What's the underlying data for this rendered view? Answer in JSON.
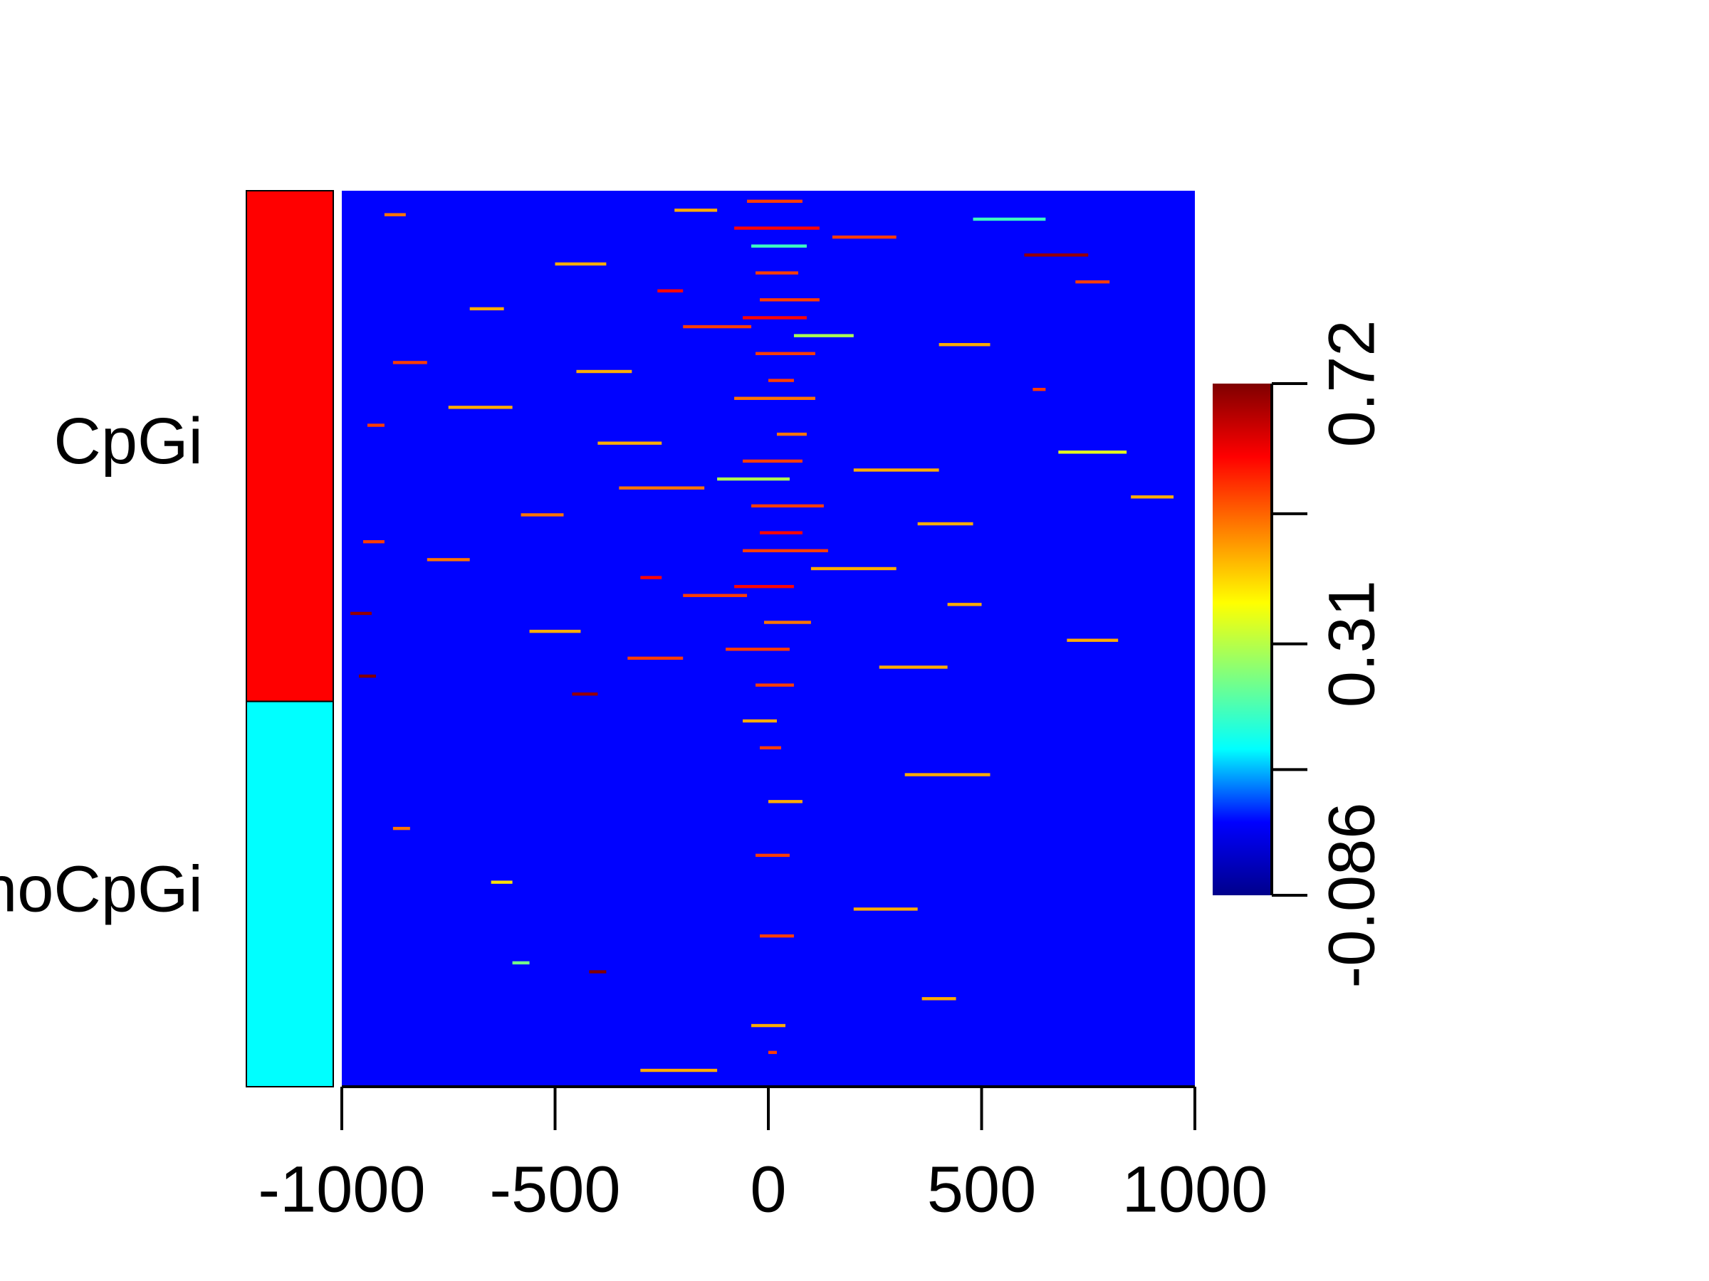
{
  "chart_data": {
    "type": "heatmap",
    "xlim": [
      -1000,
      1000
    ],
    "xticks": [
      -1000,
      -500,
      0,
      500,
      1000
    ],
    "rows": 200,
    "background_value": 0.03,
    "groups": [
      {
        "name": "CpGi",
        "color": "#ff0000",
        "rows": 114
      },
      {
        "name": "noCpGi",
        "color": "#00ffff",
        "rows": 86
      }
    ],
    "colormap": [
      "#00008b",
      "#0000ff",
      "#00ffff",
      "#7fff7f",
      "#ffff00",
      "#ff8000",
      "#ff0000",
      "#7f0000"
    ],
    "clim": [
      -0.086,
      0.72
    ],
    "colorbar_ticks": [
      {
        "value": -0.086,
        "label": "-0.086"
      },
      0.31,
      0.72
    ],
    "colorbar_minor_ticks": [
      0.112,
      0.515
    ],
    "segments": [
      [
        2,
        -50,
        80,
        0.55
      ],
      [
        4,
        -220,
        -120,
        0.45
      ],
      [
        5,
        -900,
        -850,
        0.5
      ],
      [
        6,
        480,
        650,
        0.2
      ],
      [
        8,
        -80,
        120,
        0.6
      ],
      [
        10,
        150,
        300,
        0.55
      ],
      [
        12,
        -40,
        90,
        0.2
      ],
      [
        14,
        600,
        750,
        0.7
      ],
      [
        16,
        -500,
        -380,
        0.45
      ],
      [
        18,
        -30,
        70,
        0.55
      ],
      [
        20,
        720,
        800,
        0.55
      ],
      [
        22,
        -260,
        -200,
        0.6
      ],
      [
        24,
        -20,
        120,
        0.55
      ],
      [
        26,
        -700,
        -620,
        0.45
      ],
      [
        28,
        -60,
        90,
        0.6
      ],
      [
        30,
        -200,
        -40,
        0.55
      ],
      [
        32,
        60,
        200,
        0.3
      ],
      [
        34,
        400,
        520,
        0.45
      ],
      [
        36,
        -30,
        110,
        0.55
      ],
      [
        38,
        -880,
        -800,
        0.55
      ],
      [
        40,
        -450,
        -320,
        0.45
      ],
      [
        42,
        0,
        60,
        0.55
      ],
      [
        44,
        620,
        650,
        0.55
      ],
      [
        46,
        -80,
        110,
        0.5
      ],
      [
        48,
        -750,
        -600,
        0.45
      ],
      [
        52,
        -940,
        -900,
        0.55
      ],
      [
        54,
        20,
        90,
        0.5
      ],
      [
        56,
        -400,
        -250,
        0.45
      ],
      [
        58,
        680,
        840,
        0.35
      ],
      [
        60,
        -60,
        80,
        0.55
      ],
      [
        62,
        200,
        400,
        0.45
      ],
      [
        64,
        -120,
        50,
        0.3
      ],
      [
        66,
        -350,
        -150,
        0.5
      ],
      [
        68,
        850,
        950,
        0.45
      ],
      [
        70,
        -40,
        130,
        0.55
      ],
      [
        72,
        -580,
        -480,
        0.5
      ],
      [
        74,
        350,
        480,
        0.45
      ],
      [
        76,
        -20,
        80,
        0.6
      ],
      [
        78,
        -950,
        -900,
        0.55
      ],
      [
        80,
        -60,
        140,
        0.55
      ],
      [
        82,
        -800,
        -700,
        0.5
      ],
      [
        84,
        100,
        300,
        0.45
      ],
      [
        86,
        -300,
        -250,
        0.6
      ],
      [
        88,
        -80,
        60,
        0.6
      ],
      [
        90,
        -200,
        -50,
        0.55
      ],
      [
        92,
        420,
        500,
        0.45
      ],
      [
        94,
        -980,
        -930,
        0.7
      ],
      [
        96,
        -10,
        100,
        0.5
      ],
      [
        98,
        -560,
        -440,
        0.45
      ],
      [
        100,
        700,
        820,
        0.45
      ],
      [
        102,
        -100,
        50,
        0.55
      ],
      [
        104,
        -330,
        -200,
        0.55
      ],
      [
        106,
        260,
        420,
        0.45
      ],
      [
        108,
        -960,
        -920,
        0.75
      ],
      [
        110,
        -30,
        60,
        0.55
      ],
      [
        112,
        -460,
        -400,
        0.7
      ],
      [
        118,
        -60,
        20,
        0.45
      ],
      [
        124,
        -20,
        30,
        0.55
      ],
      [
        130,
        320,
        520,
        0.45
      ],
      [
        136,
        0,
        80,
        0.45
      ],
      [
        142,
        -880,
        -840,
        0.5
      ],
      [
        148,
        -30,
        50,
        0.55
      ],
      [
        154,
        -650,
        -600,
        0.4
      ],
      [
        160,
        200,
        350,
        0.45
      ],
      [
        166,
        -20,
        60,
        0.55
      ],
      [
        172,
        -600,
        -560,
        0.25
      ],
      [
        174,
        -420,
        -380,
        0.75
      ],
      [
        180,
        360,
        440,
        0.45
      ],
      [
        186,
        -40,
        40,
        0.45
      ],
      [
        192,
        0,
        20,
        0.55
      ],
      [
        196,
        -300,
        -120,
        0.45
      ]
    ]
  }
}
